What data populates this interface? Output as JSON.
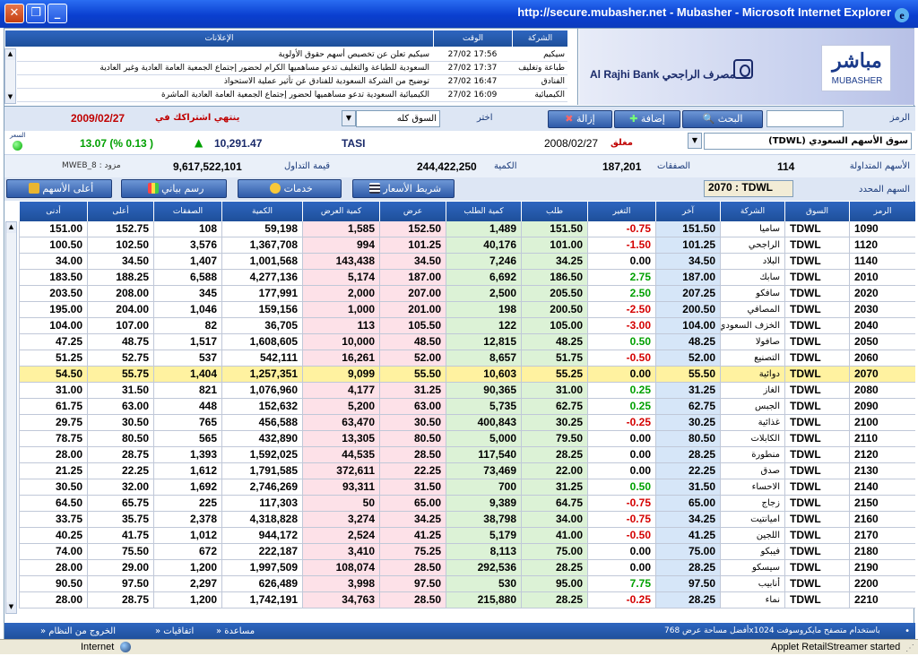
{
  "window": {
    "title": "http://secure.mubasher.net - Mubasher - Microsoft Internet Explorer"
  },
  "announcements": {
    "headers": {
      "announcements": "الإعلانات",
      "time": "الوقت",
      "company": "الشركة"
    },
    "rows": [
      {
        "msg": "سيكيم تعلن عن تخصيص أسهم حقوق الأولوية",
        "time": "27/02 17:56",
        "company": "سيكيم"
      },
      {
        "msg": "السعودية للطباعة والتغليف تدعو مساهميها الكرام لحضور إجتماع الجمعية العامة العادية وغير العادية",
        "time": "27/02 17:37",
        "company": "طباعة وتغليف"
      },
      {
        "msg": "توضيح من الشركة السعودية للفنادق عن تأثير عملية الاستحواذ",
        "time": "27/02 16:47",
        "company": "الفنادق"
      },
      {
        "msg": "الكيميائية السعودية تدعو مساهميها لحضور إجتماع الجمعية العامة العادية الماشرة",
        "time": "27/02 16:09",
        "company": "الكيميائية"
      }
    ]
  },
  "logo": {
    "bank_en": "Al Rajhi Bank",
    "bank_ar": "مصرف الراجحي",
    "mub_ar": "مباشر",
    "mub_en": "MUBASHER"
  },
  "toolbar": {
    "symbol_label": "الرمز",
    "search_value": "",
    "search_button": "البحث",
    "add_button": "إضافة",
    "remove_button": "إزالة",
    "choose_label": "اختر",
    "market_select": "السوق كله",
    "subscription_label": "ينتهي اشتراكك في",
    "subscription_date": "2009/02/27"
  },
  "index": {
    "market_select": "سوق الأسهم السعودي (TDWL)",
    "status": "مغلق",
    "date": "2008/02/27",
    "name": "TASI",
    "value": "10,291.47",
    "change": "13.07 (% 0.13 )",
    "price_label": "السعر"
  },
  "stats": {
    "traded_label": "الأسهم المتداولة",
    "traded": "114",
    "trades_label": "الصفقات",
    "trades": "187,201",
    "volume_label": "الكمية",
    "volume": "244,422,250",
    "turnover_label": "قيمة التداول",
    "turnover": "9,617,522,101",
    "provider": "مزود : MWEB_8"
  },
  "buttons": {
    "ticker": "شريط الأسعار",
    "services": "خدمات",
    "chart": "رسم بياني",
    "top": "أعلى الأسهم",
    "selected_label": "السهم المحدد",
    "selected_value": "2070 : TDWL"
  },
  "table": {
    "headers": {
      "symbol": "الرمز",
      "market": "السوق",
      "company": "الشركة",
      "last": "آخر",
      "change": "التغير",
      "bid": "طلب",
      "bid_qty": "كمية الطلب",
      "ask": "عرض",
      "ask_qty": "كمية العرض",
      "volume": "الكمية",
      "trades": "الصفقات",
      "high": "أعلى",
      "low": "أدنى"
    },
    "rows": [
      {
        "sym": "1090",
        "mkt": "TDWL",
        "name": "ساميا",
        "last": "151.50",
        "chg": "-0.75",
        "bid": "151.50",
        "bidq": "1,489",
        "ask": "152.50",
        "askq": "1,585",
        "vol": "59,198",
        "trades": "108",
        "high": "152.75",
        "low": "151.00"
      },
      {
        "sym": "1120",
        "mkt": "TDWL",
        "name": "الراجحي",
        "last": "101.25",
        "chg": "-1.50",
        "bid": "101.00",
        "bidq": "40,176",
        "ask": "101.25",
        "askq": "994",
        "vol": "1,367,708",
        "trades": "3,576",
        "high": "102.50",
        "low": "100.50"
      },
      {
        "sym": "1140",
        "mkt": "TDWL",
        "name": "البلاد",
        "last": "34.50",
        "chg": "0.00",
        "bid": "34.25",
        "bidq": "7,246",
        "ask": "34.50",
        "askq": "143,438",
        "vol": "1,001,568",
        "trades": "1,407",
        "high": "34.50",
        "low": "34.00"
      },
      {
        "sym": "2010",
        "mkt": "TDWL",
        "name": "سابك",
        "last": "187.00",
        "chg": "2.75",
        "bid": "186.50",
        "bidq": "6,692",
        "ask": "187.00",
        "askq": "5,174",
        "vol": "4,277,136",
        "trades": "6,588",
        "high": "188.25",
        "low": "183.50"
      },
      {
        "sym": "2020",
        "mkt": "TDWL",
        "name": "سافكو",
        "last": "207.25",
        "chg": "2.50",
        "bid": "205.50",
        "bidq": "2,500",
        "ask": "207.00",
        "askq": "2,000",
        "vol": "177,991",
        "trades": "345",
        "high": "208.00",
        "low": "203.50"
      },
      {
        "sym": "2030",
        "mkt": "TDWL",
        "name": "المصافي",
        "last": "200.50",
        "chg": "-2.50",
        "bid": "200.50",
        "bidq": "198",
        "ask": "201.00",
        "askq": "1,000",
        "vol": "159,156",
        "trades": "1,046",
        "high": "204.00",
        "low": "195.00"
      },
      {
        "sym": "2040",
        "mkt": "TDWL",
        "name": "الخزف السعودي",
        "last": "104.00",
        "chg": "-3.00",
        "bid": "105.00",
        "bidq": "122",
        "ask": "105.50",
        "askq": "113",
        "vol": "36,705",
        "trades": "82",
        "high": "107.00",
        "low": "104.00"
      },
      {
        "sym": "2050",
        "mkt": "TDWL",
        "name": "صافولا",
        "last": "48.25",
        "chg": "0.50",
        "bid": "48.25",
        "bidq": "12,815",
        "ask": "48.50",
        "askq": "10,000",
        "vol": "1,608,605",
        "trades": "1,517",
        "high": "48.75",
        "low": "47.25"
      },
      {
        "sym": "2060",
        "mkt": "TDWL",
        "name": "التصنيع",
        "last": "52.00",
        "chg": "-0.50",
        "bid": "51.75",
        "bidq": "8,657",
        "ask": "52.00",
        "askq": "16,261",
        "vol": "542,111",
        "trades": "537",
        "high": "52.75",
        "low": "51.25"
      },
      {
        "sym": "2070",
        "mkt": "TDWL",
        "name": "دوائية",
        "last": "55.50",
        "chg": "0.00",
        "bid": "55.25",
        "bidq": "10,603",
        "ask": "55.50",
        "askq": "9,099",
        "vol": "1,257,351",
        "trades": "1,404",
        "high": "55.75",
        "low": "54.50"
      },
      {
        "sym": "2080",
        "mkt": "TDWL",
        "name": "الغاز",
        "last": "31.25",
        "chg": "0.25",
        "bid": "31.00",
        "bidq": "90,365",
        "ask": "31.25",
        "askq": "4,177",
        "vol": "1,076,960",
        "trades": "821",
        "high": "31.50",
        "low": "31.00"
      },
      {
        "sym": "2090",
        "mkt": "TDWL",
        "name": "الجبس",
        "last": "62.75",
        "chg": "0.25",
        "bid": "62.75",
        "bidq": "5,735",
        "ask": "63.00",
        "askq": "5,200",
        "vol": "152,632",
        "trades": "448",
        "high": "63.00",
        "low": "61.75"
      },
      {
        "sym": "2100",
        "mkt": "TDWL",
        "name": "غذائية",
        "last": "30.25",
        "chg": "-0.25",
        "bid": "30.25",
        "bidq": "400,843",
        "ask": "30.50",
        "askq": "63,470",
        "vol": "456,588",
        "trades": "765",
        "high": "30.50",
        "low": "29.75"
      },
      {
        "sym": "2110",
        "mkt": "TDWL",
        "name": "الكابلات",
        "last": "80.50",
        "chg": "0.00",
        "bid": "79.50",
        "bidq": "5,000",
        "ask": "80.50",
        "askq": "13,305",
        "vol": "432,890",
        "trades": "565",
        "high": "80.50",
        "low": "78.75"
      },
      {
        "sym": "2120",
        "mkt": "TDWL",
        "name": "منطورة",
        "last": "28.25",
        "chg": "0.00",
        "bid": "28.25",
        "bidq": "117,540",
        "ask": "28.50",
        "askq": "44,535",
        "vol": "1,592,025",
        "trades": "1,393",
        "high": "28.75",
        "low": "28.00"
      },
      {
        "sym": "2130",
        "mkt": "TDWL",
        "name": "صدق",
        "last": "22.25",
        "chg": "0.00",
        "bid": "22.00",
        "bidq": "73,469",
        "ask": "22.25",
        "askq": "372,611",
        "vol": "1,791,585",
        "trades": "1,612",
        "high": "22.25",
        "low": "21.25"
      },
      {
        "sym": "2140",
        "mkt": "TDWL",
        "name": "الاحساء",
        "last": "31.50",
        "chg": "0.50",
        "bid": "31.25",
        "bidq": "700",
        "ask": "31.50",
        "askq": "93,311",
        "vol": "2,746,269",
        "trades": "1,692",
        "high": "32.00",
        "low": "30.50"
      },
      {
        "sym": "2150",
        "mkt": "TDWL",
        "name": "زجاج",
        "last": "65.00",
        "chg": "-0.75",
        "bid": "64.75",
        "bidq": "9,389",
        "ask": "65.00",
        "askq": "50",
        "vol": "117,303",
        "trades": "225",
        "high": "65.75",
        "low": "64.50"
      },
      {
        "sym": "2160",
        "mkt": "TDWL",
        "name": "اميانتيت",
        "last": "34.25",
        "chg": "-0.75",
        "bid": "34.00",
        "bidq": "38,798",
        "ask": "34.25",
        "askq": "3,274",
        "vol": "4,318,828",
        "trades": "2,378",
        "high": "35.75",
        "low": "33.75"
      },
      {
        "sym": "2170",
        "mkt": "TDWL",
        "name": "اللجين",
        "last": "41.25",
        "chg": "-0.50",
        "bid": "41.00",
        "bidq": "5,179",
        "ask": "41.25",
        "askq": "2,524",
        "vol": "944,172",
        "trades": "1,012",
        "high": "41.75",
        "low": "40.25"
      },
      {
        "sym": "2180",
        "mkt": "TDWL",
        "name": "فيبكو",
        "last": "75.00",
        "chg": "0.00",
        "bid": "75.00",
        "bidq": "8,113",
        "ask": "75.25",
        "askq": "3,410",
        "vol": "222,187",
        "trades": "672",
        "high": "75.50",
        "low": "74.00"
      },
      {
        "sym": "2190",
        "mkt": "TDWL",
        "name": "سيسكو",
        "last": "28.25",
        "chg": "0.00",
        "bid": "28.25",
        "bidq": "292,536",
        "ask": "28.50",
        "askq": "108,074",
        "vol": "1,997,509",
        "trades": "1,200",
        "high": "29.00",
        "low": "28.00"
      },
      {
        "sym": "2200",
        "mkt": "TDWL",
        "name": "أنابيب",
        "last": "97.50",
        "chg": "7.75",
        "bid": "95.00",
        "bidq": "530",
        "ask": "97.50",
        "askq": "3,998",
        "vol": "626,489",
        "trades": "2,297",
        "high": "97.50",
        "low": "90.50"
      },
      {
        "sym": "2210",
        "mkt": "TDWL",
        "name": "نماء",
        "last": "28.25",
        "chg": "-0.25",
        "bid": "28.25",
        "bidq": "215,880",
        "ask": "28.50",
        "askq": "34,763",
        "vol": "1,742,191",
        "trades": "1,200",
        "high": "28.75",
        "low": "28.00"
      }
    ]
  },
  "bottombar": {
    "exit": "الخروج من النظام",
    "agreements": "اتفاقيات",
    "help": "مساعدة",
    "note": "أفضل مساحة عرض 768x1024 باستخدام متصفح مايكروسوفت"
  },
  "statusbar": {
    "zone": "Internet",
    "applet": "Applet RetailStreamer started"
  },
  "colors": {
    "header": "#1e4f9a",
    "bid_bg": "#dcf2d6",
    "ask_bg": "#fde1e8",
    "last_bg": "#d6e6f8",
    "highlight": "#fff2a0",
    "neg": "#d40000",
    "pos": "#00a000"
  }
}
